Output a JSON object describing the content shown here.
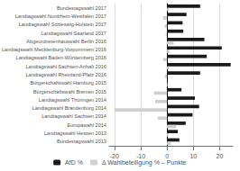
{
  "chart_data": {
    "type": "bar",
    "orientation": "horizontal",
    "categories": [
      "Bundestagswahl 2017",
      "Landtagswahl Nordrhein-Westfalen 2017",
      "Landtagswahl Schleswig-Holstein 2017",
      "Landtagswahl Saarland 2017",
      "Abgeordnetenhauswahl Berlin 2016",
      "Landtagswahl Mecklenburg-Vorpommern 2016",
      "Landtagswahl Baden-Württemberg 2016",
      "Landtagswahl Sachsen-Anhalt 2016",
      "Landtagswahl Rheinland-Pfalz 2016",
      "Bürgerschaftswahl Hamburg 2015",
      "Bürgerschaftswahl Bremen 2015",
      "Landtagswahl Thüringen 2014",
      "Landtagswahl Brandenburg 2014",
      "Landtagswahl Sachsen 2014",
      "Europawahl 2014",
      "Landtagswahl Hessen 2013",
      "Bundestagswahl 2013"
    ],
    "series": [
      {
        "name": "AfD %",
        "color": "#1a1a1a",
        "values": [
          12.6,
          7.4,
          5.9,
          6.2,
          14.2,
          20.8,
          15.1,
          24.2,
          12.6,
          0.3,
          5.5,
          10.6,
          12.2,
          9.7,
          7.1,
          4.1,
          4.7
        ]
      },
      {
        "name": "Δ Wahlbeteiligung % – Punkte",
        "color": "#d0d0d0",
        "values": [
          0.8,
          -1.5,
          -0.8,
          -0.5,
          2.5,
          1.0,
          -1.5,
          0.8,
          -0.8,
          0.2,
          -5.0,
          -4.5,
          -20.0,
          -3.5,
          3.5,
          0.5,
          1.5
        ]
      }
    ],
    "xlim": [
      -22,
      25
    ],
    "xticks": [
      -20,
      -10,
      0,
      10,
      20
    ],
    "grid": true,
    "legend": "bottom"
  }
}
